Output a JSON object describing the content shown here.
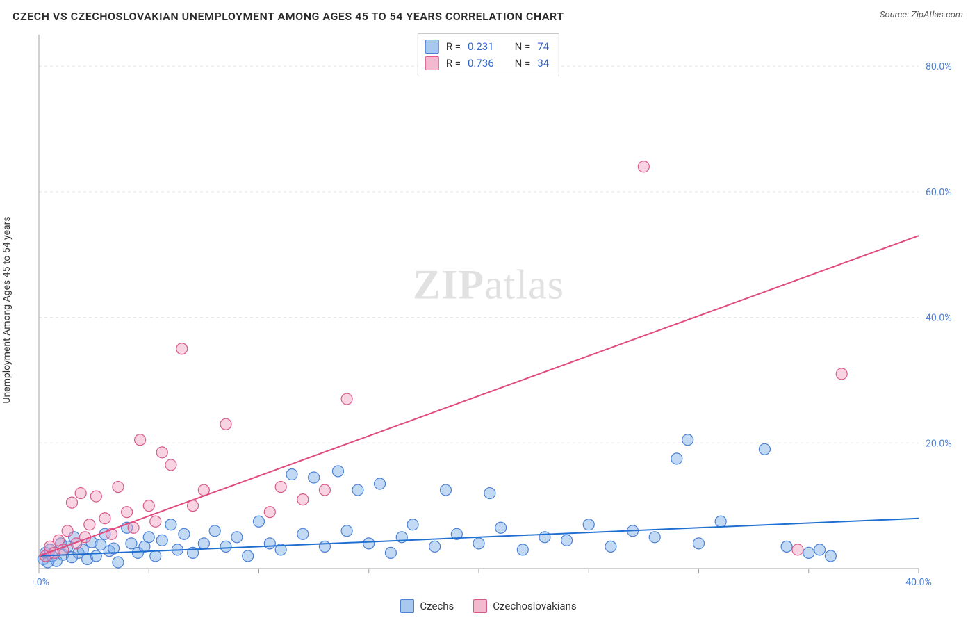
{
  "title": "CZECH VS CZECHOSLOVAKIAN UNEMPLOYMENT AMONG AGES 45 TO 54 YEARS CORRELATION CHART",
  "source_label": "Source: ZipAtlas.com",
  "ylabel": "Unemployment Among Ages 45 to 54 years",
  "watermark": "ZIPatlas",
  "chart": {
    "type": "scatter",
    "xlim": [
      0,
      40
    ],
    "ylim": [
      0,
      85
    ],
    "x_ticks": [
      0,
      5,
      10,
      15,
      20,
      25,
      30,
      35,
      40
    ],
    "x_tick_labels": {
      "0": "0.0%",
      "40": "40.0%"
    },
    "y_ticks": [
      20,
      40,
      60,
      80
    ],
    "y_tick_labels": [
      "20.0%",
      "40.0%",
      "60.0%",
      "80.0%"
    ],
    "grid_color": "#e4e4e4",
    "background_color": "#ffffff",
    "marker_radius": 8,
    "marker_stroke_width": 1.2,
    "line_width": 2,
    "series": [
      {
        "name": "Czechs",
        "label": "Czechs",
        "fill_color": "rgba(120,170,230,0.45)",
        "stroke_color": "#4a80d6",
        "line_color": "#1f6fd0",
        "swatch_fill": "#a8c8ef",
        "R": "0.231",
        "N": "74",
        "regression": {
          "x1": 0,
          "y1": 2.0,
          "x2": 40,
          "y2": 8.0
        },
        "points": [
          [
            0.2,
            1.5
          ],
          [
            0.3,
            2.5
          ],
          [
            0.4,
            1.0
          ],
          [
            0.5,
            3.0
          ],
          [
            0.6,
            2.0
          ],
          [
            0.8,
            1.2
          ],
          [
            1.0,
            4.0
          ],
          [
            1.1,
            2.2
          ],
          [
            1.3,
            3.5
          ],
          [
            1.5,
            1.8
          ],
          [
            1.6,
            5.0
          ],
          [
            1.8,
            2.5
          ],
          [
            2.0,
            3.0
          ],
          [
            2.2,
            1.5
          ],
          [
            2.4,
            4.2
          ],
          [
            2.6,
            2.0
          ],
          [
            2.8,
            3.8
          ],
          [
            3.0,
            5.5
          ],
          [
            3.2,
            2.8
          ],
          [
            3.4,
            3.2
          ],
          [
            3.6,
            1.0
          ],
          [
            4.0,
            6.5
          ],
          [
            4.2,
            4.0
          ],
          [
            4.5,
            2.5
          ],
          [
            4.8,
            3.5
          ],
          [
            5.0,
            5.0
          ],
          [
            5.3,
            2.0
          ],
          [
            5.6,
            4.5
          ],
          [
            6.0,
            7.0
          ],
          [
            6.3,
            3.0
          ],
          [
            6.6,
            5.5
          ],
          [
            7.0,
            2.5
          ],
          [
            7.5,
            4.0
          ],
          [
            8.0,
            6.0
          ],
          [
            8.5,
            3.5
          ],
          [
            9.0,
            5.0
          ],
          [
            9.5,
            2.0
          ],
          [
            10.0,
            7.5
          ],
          [
            10.5,
            4.0
          ],
          [
            11.0,
            3.0
          ],
          [
            11.5,
            15.0
          ],
          [
            12.0,
            5.5
          ],
          [
            12.5,
            14.5
          ],
          [
            13.0,
            3.5
          ],
          [
            13.6,
            15.5
          ],
          [
            14.0,
            6.0
          ],
          [
            14.5,
            12.5
          ],
          [
            15.0,
            4.0
          ],
          [
            15.5,
            13.5
          ],
          [
            16.0,
            2.5
          ],
          [
            16.5,
            5.0
          ],
          [
            17.0,
            7.0
          ],
          [
            18.0,
            3.5
          ],
          [
            18.5,
            12.5
          ],
          [
            19.0,
            5.5
          ],
          [
            20.0,
            4.0
          ],
          [
            20.5,
            12.0
          ],
          [
            21.0,
            6.5
          ],
          [
            22.0,
            3.0
          ],
          [
            23.0,
            5.0
          ],
          [
            24.0,
            4.5
          ],
          [
            25.0,
            7.0
          ],
          [
            26.0,
            3.5
          ],
          [
            27.0,
            6.0
          ],
          [
            28.0,
            5.0
          ],
          [
            29.0,
            17.5
          ],
          [
            29.5,
            20.5
          ],
          [
            30.0,
            4.0
          ],
          [
            31.0,
            7.5
          ],
          [
            33.0,
            19.0
          ],
          [
            34.0,
            3.5
          ],
          [
            35.0,
            2.5
          ],
          [
            35.5,
            3.0
          ],
          [
            36.0,
            2.0
          ]
        ]
      },
      {
        "name": "Czechoslovakians",
        "label": "Czechoslovakians",
        "fill_color": "rgba(240,160,190,0.45)",
        "stroke_color": "#d85a8a",
        "line_color": "#e04a7f",
        "swatch_fill": "#f4b9cf",
        "R": "0.736",
        "N": "34",
        "regression": {
          "x1": 0,
          "y1": 2.0,
          "x2": 40,
          "y2": 53.0
        },
        "points": [
          [
            0.3,
            2.0
          ],
          [
            0.5,
            3.5
          ],
          [
            0.7,
            2.5
          ],
          [
            0.9,
            4.5
          ],
          [
            1.1,
            3.0
          ],
          [
            1.3,
            6.0
          ],
          [
            1.5,
            10.5
          ],
          [
            1.7,
            4.0
          ],
          [
            1.9,
            12.0
          ],
          [
            2.1,
            5.0
          ],
          [
            2.3,
            7.0
          ],
          [
            2.6,
            11.5
          ],
          [
            3.0,
            8.0
          ],
          [
            3.3,
            5.5
          ],
          [
            3.6,
            13.0
          ],
          [
            4.0,
            9.0
          ],
          [
            4.3,
            6.5
          ],
          [
            4.6,
            20.5
          ],
          [
            5.0,
            10.0
          ],
          [
            5.3,
            7.5
          ],
          [
            5.6,
            18.5
          ],
          [
            6.0,
            16.5
          ],
          [
            6.5,
            35.0
          ],
          [
            7.0,
            10.0
          ],
          [
            7.5,
            12.5
          ],
          [
            8.5,
            23.0
          ],
          [
            10.5,
            9.0
          ],
          [
            11.0,
            13.0
          ],
          [
            12.0,
            11.0
          ],
          [
            13.0,
            12.5
          ],
          [
            14.0,
            27.0
          ],
          [
            27.5,
            64.0
          ],
          [
            36.5,
            31.0
          ],
          [
            34.5,
            3.0
          ]
        ]
      }
    ]
  },
  "legend_bottom": [
    {
      "swatch": "#a8c8ef",
      "border": "#4a80d6",
      "label": "Czechs"
    },
    {
      "swatch": "#f4b9cf",
      "border": "#d85a8a",
      "label": "Czechoslovakians"
    }
  ],
  "stats_box": {
    "R_label": "R  =",
    "N_label": "N  ="
  }
}
